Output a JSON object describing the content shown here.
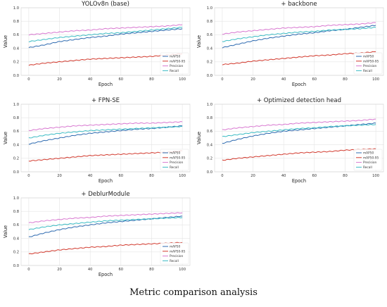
{
  "caption": "Metric comparison analysis",
  "colors": {
    "mAP50": "#2f6bb0",
    "mAP50-95": "#d23a2e",
    "Precision": "#d878d0",
    "Recall": "#3cbcc4"
  },
  "chart_data": [
    {
      "type": "line",
      "title": "YOLOv8n (base)",
      "xlabel": "Epoch",
      "ylabel": "Value",
      "xlim": [
        -5,
        105
      ],
      "ylim": [
        0,
        1.0
      ],
      "xticks": [
        "0",
        "20",
        "40",
        "60",
        "80",
        "100"
      ],
      "yticks": [
        "0.0",
        "0.2",
        "0.4",
        "0.6",
        "0.8",
        "1.0"
      ],
      "grid": true,
      "legend": "lower-right",
      "x": [
        0,
        10,
        20,
        30,
        40,
        50,
        60,
        70,
        80,
        90,
        100
      ],
      "series": [
        {
          "name": "mAP50",
          "values": [
            0.41,
            0.45,
            0.5,
            0.53,
            0.56,
            0.58,
            0.61,
            0.63,
            0.65,
            0.67,
            0.69
          ]
        },
        {
          "name": "mAP50-95",
          "values": [
            0.15,
            0.18,
            0.2,
            0.22,
            0.24,
            0.25,
            0.26,
            0.27,
            0.28,
            0.3,
            0.32
          ]
        },
        {
          "name": "Precision",
          "values": [
            0.6,
            0.62,
            0.64,
            0.66,
            0.67,
            0.69,
            0.7,
            0.71,
            0.72,
            0.73,
            0.75
          ]
        },
        {
          "name": "Recall",
          "values": [
            0.5,
            0.53,
            0.56,
            0.58,
            0.6,
            0.62,
            0.63,
            0.65,
            0.67,
            0.69,
            0.71
          ]
        }
      ]
    },
    {
      "type": "line",
      "title": "+ backbone",
      "xlabel": "Epoch",
      "ylabel": "Value",
      "xlim": [
        -5,
        105
      ],
      "ylim": [
        0,
        1.0
      ],
      "xticks": [
        "0",
        "20",
        "40",
        "60",
        "80",
        "100"
      ],
      "yticks": [
        "0.0",
        "0.2",
        "0.4",
        "0.6",
        "0.8",
        "1.0"
      ],
      "grid": true,
      "legend": "lower-right",
      "x": [
        0,
        10,
        20,
        30,
        40,
        50,
        60,
        70,
        80,
        90,
        100
      ],
      "series": [
        {
          "name": "mAP50",
          "values": [
            0.41,
            0.46,
            0.51,
            0.55,
            0.58,
            0.61,
            0.63,
            0.66,
            0.68,
            0.71,
            0.74
          ]
        },
        {
          "name": "mAP50-95",
          "values": [
            0.16,
            0.18,
            0.21,
            0.23,
            0.25,
            0.27,
            0.29,
            0.3,
            0.32,
            0.33,
            0.35
          ]
        },
        {
          "name": "Precision",
          "values": [
            0.61,
            0.64,
            0.66,
            0.68,
            0.7,
            0.71,
            0.72,
            0.74,
            0.75,
            0.76,
            0.78
          ]
        },
        {
          "name": "Recall",
          "values": [
            0.5,
            0.54,
            0.57,
            0.6,
            0.62,
            0.64,
            0.65,
            0.67,
            0.68,
            0.69,
            0.71
          ]
        }
      ]
    },
    {
      "type": "line",
      "title": "+ FPN-SE",
      "xlabel": "Epoch",
      "ylabel": "Value",
      "xlim": [
        -5,
        105
      ],
      "ylim": [
        0,
        1.0
      ],
      "xticks": [
        "0",
        "20",
        "40",
        "60",
        "80",
        "100"
      ],
      "yticks": [
        "0.0",
        "0.2",
        "0.4",
        "0.6",
        "0.8",
        "1.0"
      ],
      "grid": true,
      "legend": "lower-right",
      "x": [
        0,
        10,
        20,
        30,
        40,
        50,
        60,
        70,
        80,
        90,
        100
      ],
      "series": [
        {
          "name": "mAP50",
          "values": [
            0.41,
            0.46,
            0.5,
            0.54,
            0.57,
            0.59,
            0.61,
            0.63,
            0.64,
            0.66,
            0.68
          ]
        },
        {
          "name": "mAP50-95",
          "values": [
            0.16,
            0.18,
            0.2,
            0.22,
            0.24,
            0.25,
            0.26,
            0.27,
            0.28,
            0.29,
            0.31
          ]
        },
        {
          "name": "Precision",
          "values": [
            0.61,
            0.64,
            0.66,
            0.68,
            0.69,
            0.7,
            0.71,
            0.72,
            0.72,
            0.73,
            0.74
          ]
        },
        {
          "name": "Recall",
          "values": [
            0.5,
            0.54,
            0.57,
            0.59,
            0.61,
            0.62,
            0.63,
            0.64,
            0.65,
            0.66,
            0.67
          ]
        }
      ]
    },
    {
      "type": "line",
      "title": "+ Optimized detection head",
      "xlabel": "Epoch",
      "ylabel": "Value",
      "xlim": [
        -5,
        105
      ],
      "ylim": [
        0,
        1.0
      ],
      "xticks": [
        "0",
        "20",
        "40",
        "60",
        "80",
        "100"
      ],
      "yticks": [
        "0.0",
        "0.2",
        "0.4",
        "0.6",
        "0.8",
        "1.0"
      ],
      "grid": true,
      "legend": "lower-right",
      "x": [
        0,
        10,
        20,
        30,
        40,
        50,
        60,
        70,
        80,
        90,
        100
      ],
      "series": [
        {
          "name": "mAP50",
          "values": [
            0.42,
            0.48,
            0.53,
            0.57,
            0.6,
            0.62,
            0.64,
            0.66,
            0.68,
            0.7,
            0.72
          ]
        },
        {
          "name": "mAP50-95",
          "values": [
            0.17,
            0.2,
            0.22,
            0.24,
            0.26,
            0.28,
            0.29,
            0.3,
            0.32,
            0.33,
            0.34
          ]
        },
        {
          "name": "Precision",
          "values": [
            0.62,
            0.65,
            0.67,
            0.69,
            0.7,
            0.72,
            0.73,
            0.74,
            0.75,
            0.76,
            0.78
          ]
        },
        {
          "name": "Recall",
          "values": [
            0.52,
            0.55,
            0.58,
            0.6,
            0.62,
            0.64,
            0.65,
            0.67,
            0.68,
            0.69,
            0.7
          ]
        }
      ]
    },
    {
      "type": "line",
      "title": "+ DeblurModule",
      "xlabel": "Epoch",
      "ylabel": "Value",
      "xlim": [
        -5,
        105
      ],
      "ylim": [
        0,
        1.0
      ],
      "xticks": [
        "0",
        "20",
        "40",
        "60",
        "80",
        "100"
      ],
      "yticks": [
        "0.0",
        "0.2",
        "0.4",
        "0.6",
        "0.8",
        "1.0"
      ],
      "grid": true,
      "legend": "lower-right",
      "x": [
        0,
        10,
        20,
        30,
        40,
        50,
        60,
        70,
        80,
        90,
        100
      ],
      "series": [
        {
          "name": "mAP50",
          "values": [
            0.42,
            0.48,
            0.53,
            0.57,
            0.6,
            0.63,
            0.65,
            0.67,
            0.69,
            0.71,
            0.73
          ]
        },
        {
          "name": "mAP50-95",
          "values": [
            0.17,
            0.2,
            0.23,
            0.25,
            0.27,
            0.28,
            0.3,
            0.31,
            0.32,
            0.33,
            0.34
          ]
        },
        {
          "name": "Precision",
          "values": [
            0.63,
            0.66,
            0.68,
            0.7,
            0.71,
            0.73,
            0.74,
            0.75,
            0.76,
            0.77,
            0.78
          ]
        },
        {
          "name": "Recall",
          "values": [
            0.53,
            0.57,
            0.6,
            0.62,
            0.64,
            0.66,
            0.67,
            0.68,
            0.69,
            0.7,
            0.71
          ]
        }
      ]
    }
  ]
}
